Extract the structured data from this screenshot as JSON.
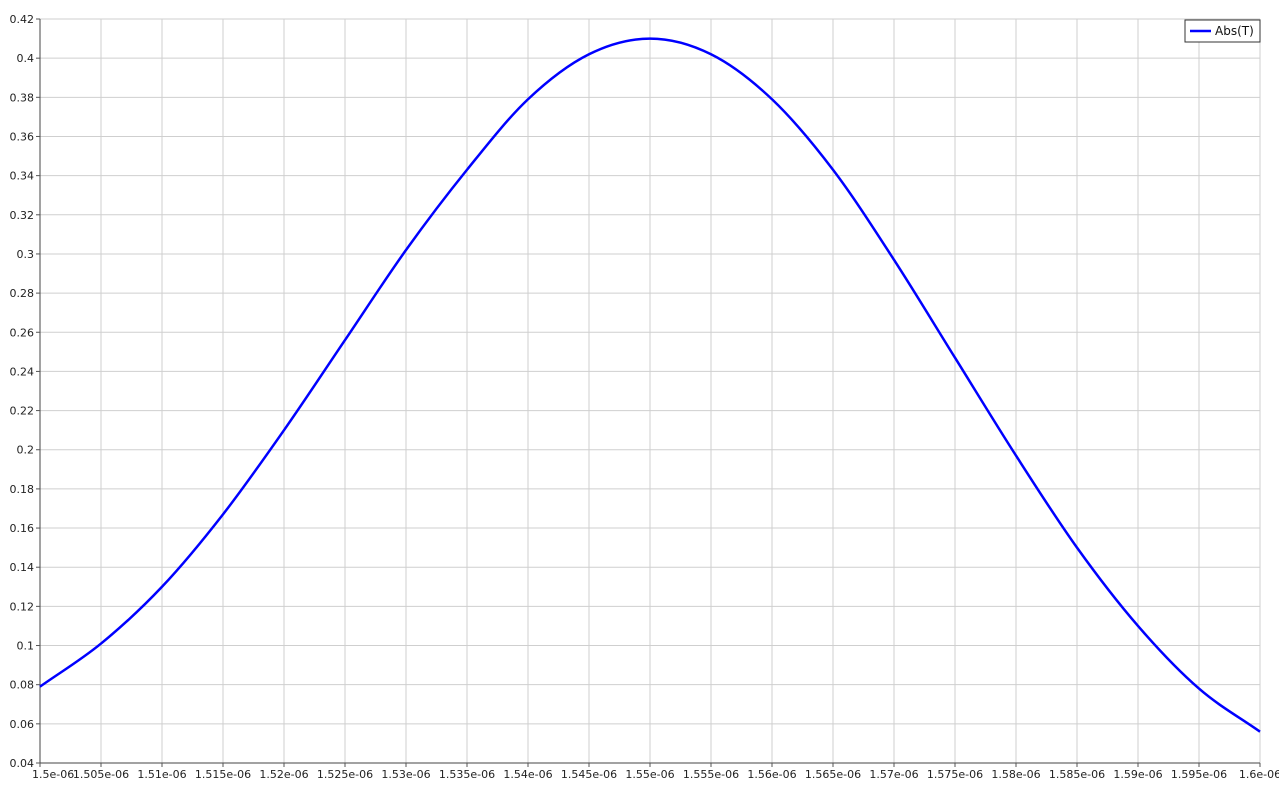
{
  "chart_data": {
    "type": "line",
    "title": "",
    "xlabel": "",
    "ylabel": "",
    "xlim": [
      1.5e-06,
      1.6e-06
    ],
    "ylim": [
      0.04,
      0.42
    ],
    "grid": true,
    "legend_position": "top-right",
    "x_tick_labels": [
      "1.5e-06",
      "1.505e-06",
      "1.51e-06",
      "1.515e-06",
      "1.52e-06",
      "1.525e-06",
      "1.53e-06",
      "1.535e-06",
      "1.54e-06",
      "1.545e-06",
      "1.55e-06",
      "1.555e-06",
      "1.56e-06",
      "1.565e-06",
      "1.57e-06",
      "1.575e-06",
      "1.58e-06",
      "1.585e-06",
      "1.59e-06",
      "1.595e-06",
      "1.6e-06"
    ],
    "y_tick_labels": [
      "0.04",
      "0.06",
      "0.08",
      "0.1",
      "0.12",
      "0.14",
      "0.16",
      "0.18",
      "0.2",
      "0.22",
      "0.24",
      "0.26",
      "0.28",
      "0.3",
      "0.32",
      "0.34",
      "0.36",
      "0.38",
      "0.4",
      "0.42"
    ],
    "series": [
      {
        "name": "Abs(T)",
        "color": "#0000ff",
        "x": [
          1.5e-06,
          1.505e-06,
          1.51e-06,
          1.515e-06,
          1.52e-06,
          1.525e-06,
          1.53e-06,
          1.535e-06,
          1.54e-06,
          1.545e-06,
          1.55e-06,
          1.555e-06,
          1.56e-06,
          1.565e-06,
          1.57e-06,
          1.575e-06,
          1.58e-06,
          1.585e-06,
          1.59e-06,
          1.595e-06,
          1.6e-06
        ],
        "values": [
          0.079,
          0.101,
          0.13,
          0.167,
          0.21,
          0.256,
          0.302,
          0.343,
          0.379,
          0.402,
          0.41,
          0.402,
          0.379,
          0.343,
          0.297,
          0.247,
          0.197,
          0.15,
          0.11,
          0.078,
          0.056
        ]
      }
    ]
  }
}
